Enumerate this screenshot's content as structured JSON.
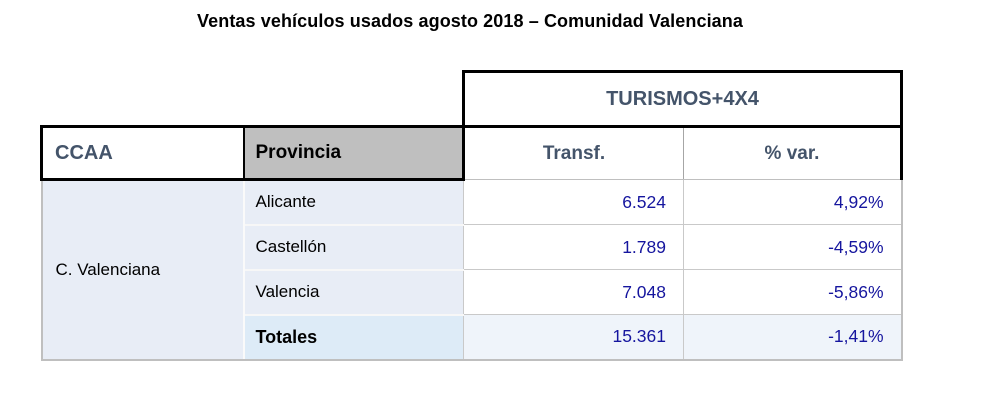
{
  "title": "Ventas vehículos usados agosto 2018 – Comunidad Valenciana",
  "table": {
    "group_header": "TURISMOS+4X4",
    "headers": {
      "ccaa": "CCAA",
      "provincia": "Provincia",
      "transf": "Transf.",
      "var": "% var."
    },
    "ccaa_label": "C. Valenciana",
    "rows": [
      {
        "provincia": "Alicante",
        "transf": "6.524",
        "var": "4,92%"
      },
      {
        "provincia": "Castellón",
        "transf": "1.789",
        "var": "-4,59%"
      },
      {
        "provincia": "Valencia",
        "transf": "7.048",
        "var": "-5,86%"
      }
    ],
    "totals": {
      "label": "Totales",
      "transf": "15.361",
      "var": "-1,41%"
    }
  },
  "chart_data": {
    "type": "table",
    "title": "Ventas vehículos usados agosto 2018 – Comunidad Valenciana",
    "group_header": "TURISMOS+4X4",
    "columns": [
      "CCAA",
      "Provincia",
      "Transf.",
      "% var."
    ],
    "rows": [
      [
        "C. Valenciana",
        "Alicante",
        6524,
        4.92
      ],
      [
        "C. Valenciana",
        "Castellón",
        1789,
        -4.59
      ],
      [
        "C. Valenciana",
        "Valencia",
        7048,
        -5.86
      ],
      [
        "C. Valenciana",
        "Totales",
        15361,
        -1.41
      ]
    ]
  },
  "colors": {
    "header_text": "#44546A",
    "number_text": "#15159E",
    "provincia_header_bg": "#BFBFBF",
    "row_bg": "#E8EDF6",
    "totals_label_bg": "#DDEBF7",
    "totals_value_bg": "#EFF4FA",
    "border_black": "#000000",
    "border_gray": "#BFBFBF"
  }
}
